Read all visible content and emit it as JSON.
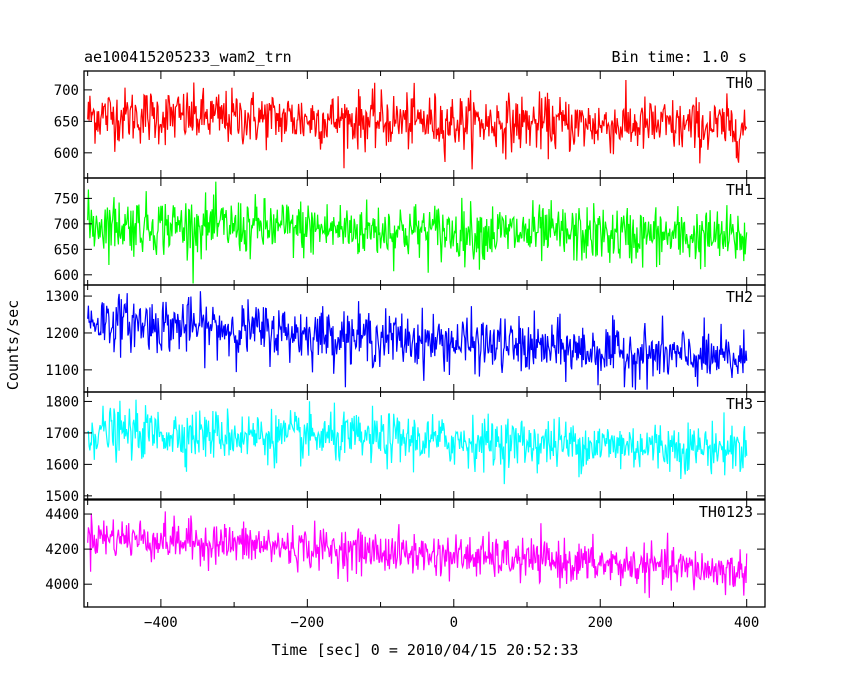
{
  "header": {
    "title": "ae100415205233_wam2_trn",
    "bin_time": "Bin time: 1.0 s"
  },
  "axes": {
    "xlabel": "Time [sec] 0 = 2010/04/15 20:52:33",
    "ylabel": "Counts/sec"
  },
  "chart_data": {
    "type": "line",
    "title": "ae100415205233_wam2_trn",
    "xlabel": "Time [sec] 0 = 2010/04/15 20:52:33",
    "ylabel": "Counts/sec",
    "xlim": [
      -505,
      425
    ],
    "x_ticks": [
      -400,
      -200,
      0,
      200,
      400
    ],
    "x_tick_labels": [
      "−400",
      "−200",
      "0",
      "200",
      "400"
    ],
    "x_start": -500,
    "x_end": 400,
    "x_step": 1,
    "panels": [
      {
        "name": "TH0",
        "color": "#ff0000",
        "ylim": [
          560,
          730
        ],
        "yticks": [
          600,
          650,
          700
        ],
        "trend": [
          [
            -500,
            660
          ],
          [
            400,
            640
          ]
        ],
        "noise_sigma": 22,
        "series": [
          {
            "name": "TH0"
          }
        ]
      },
      {
        "name": "TH1",
        "color": "#00ff00",
        "ylim": [
          580,
          790
        ],
        "yticks": [
          600,
          650,
          700,
          750
        ],
        "trend": [
          [
            -500,
            700
          ],
          [
            400,
            672
          ]
        ],
        "noise_sigma": 28,
        "series": [
          {
            "name": "TH1"
          }
        ]
      },
      {
        "name": "TH2",
        "color": "#0000ff",
        "ylim": [
          1040,
          1330
        ],
        "yticks": [
          1100,
          1200,
          1300
        ],
        "trend": [
          [
            -500,
            1235
          ],
          [
            400,
            1125
          ]
        ],
        "noise_sigma": 37,
        "series": [
          {
            "name": "TH2"
          }
        ]
      },
      {
        "name": "TH3",
        "color": "#00ffff",
        "ylim": [
          1490,
          1830
        ],
        "yticks": [
          1500,
          1600,
          1700,
          1800
        ],
        "trend": [
          [
            -500,
            1705
          ],
          [
            400,
            1650
          ]
        ],
        "noise_sigma": 40,
        "series": [
          {
            "name": "TH3"
          }
        ]
      },
      {
        "name": "TH0123",
        "color": "#ff00ff",
        "ylim": [
          3870,
          4480
        ],
        "yticks": [
          4000,
          4200,
          4400
        ],
        "trend": [
          [
            -500,
            4275
          ],
          [
            400,
            4070
          ]
        ],
        "noise_sigma": 60,
        "series": [
          {
            "name": "TH0123"
          }
        ]
      }
    ]
  }
}
